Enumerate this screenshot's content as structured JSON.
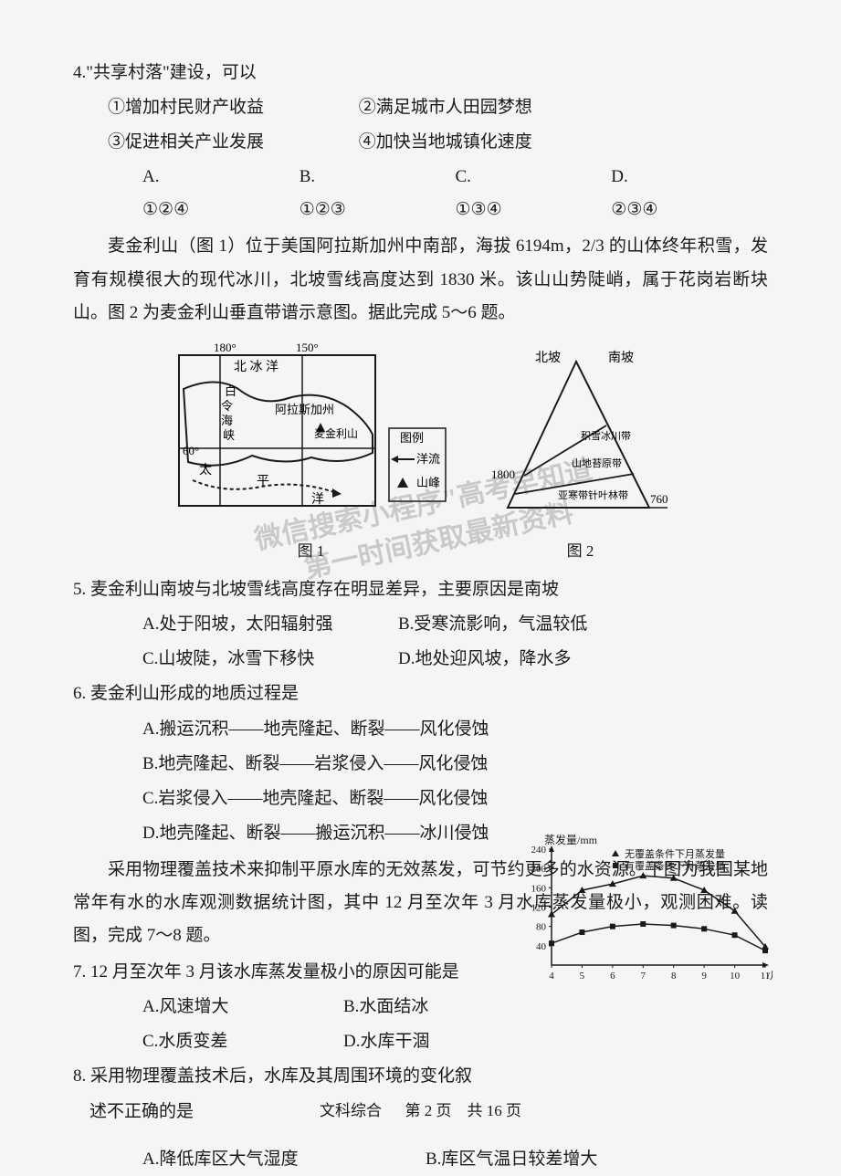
{
  "q4": {
    "stem": "4.\"共享村落\"建设，可以",
    "sub1": "①增加村民财产收益",
    "sub2": "②满足城市人田园梦想",
    "sub3": "③促进相关产业发展",
    "sub4": "④加快当地城镇化速度",
    "optA": "A. ①②④",
    "optB": "B. ①②③",
    "optC": "C. ①③④",
    "optD": "D. ②③④"
  },
  "passage1": "麦金利山（图 1）位于美国阿拉斯加州中南部，海拔 6194m，2/3 的山体终年积雪，发育有规模很大的现代冰川，北坡雪线高度达到 1830 米。该山山势陡峭，属于花岗岩断块山。图 2 为麦金利山垂直带谱示意图。据此完成 5～6 题。",
  "fig1": {
    "caption": "图 1",
    "labels": {
      "lon180": "180°",
      "lon150": "150°",
      "arctic": "北 冰 洋",
      "baiLing": "白令海峡",
      "alaska": "阿拉斯加州",
      "mountain": "麦金利山",
      "lat60": "60°",
      "pacific": "太 平 洋",
      "legend": "图例",
      "current": "洋流",
      "peak": "山峰"
    },
    "colors": {
      "border": "#1a1a1a",
      "bg": "#ffffff"
    }
  },
  "fig2": {
    "caption": "图 2",
    "labels": {
      "north": "北坡",
      "south": "南坡",
      "snowline": "1800",
      "base": "760",
      "zone1": "积雪冰川带",
      "zone2": "山地苔原带",
      "zone3": "亚寒带针叶林带"
    },
    "colors": {
      "border": "#1a1a1a",
      "bg": "#ffffff"
    }
  },
  "q5": {
    "stem": "5. 麦金利山南坡与北坡雪线高度存在明显差异，主要原因是南坡",
    "optA": "A.处于阳坡，太阳辐射强",
    "optB": "B.受寒流影响，气温较低",
    "optC": "C.山坡陡，冰雪下移快",
    "optD": "D.地处迎风坡，降水多"
  },
  "q6": {
    "stem": "6. 麦金利山形成的地质过程是",
    "optA": "A.搬运沉积——地壳隆起、断裂——风化侵蚀",
    "optB": "B.地壳隆起、断裂——岩浆侵入——风化侵蚀",
    "optC": "C.岩浆侵入——地壳隆起、断裂——风化侵蚀",
    "optD": "D.地壳隆起、断裂——搬运沉积——冰川侵蚀"
  },
  "passage2": "采用物理覆盖技术来抑制平原水库的无效蒸发，可节约更多的水资源。下图为我国某地常年有水的水库观测数据统计图，其中 12 月至次年 3 月水库蒸发量极小，观测困难。读图，完成 7～8 题。",
  "q7": {
    "stem": "7.  12 月至次年 3 月该水库蒸发量极小的原因可能是",
    "optA": "A.风速增大",
    "optB": "B.水面结冰",
    "optC": "C.水质变差",
    "optD": "D.水库干涸"
  },
  "q8": {
    "stem": "8.   采用物理覆盖技术后，水库及其周围环境的变化叙",
    "stem2": "述不正确的是",
    "optA": "A.降低库区大气湿度",
    "optB": "B.库区气温日较差增大"
  },
  "chart": {
    "title": "蒸发量/mm",
    "ylim": [
      0,
      240
    ],
    "yticks": [
      40,
      80,
      120,
      160,
      200,
      240
    ],
    "xlim": [
      4,
      11
    ],
    "xticks": [
      4,
      5,
      6,
      7,
      8,
      9,
      10,
      11
    ],
    "xlabel": "/月",
    "series1": {
      "label": "无覆盖条件下月蒸发量",
      "marker": "triangle",
      "color": "#1a1a1a",
      "x": [
        4,
        5,
        6,
        7,
        8,
        9,
        10,
        11
      ],
      "y": [
        105,
        155,
        168,
        185,
        180,
        155,
        112,
        38
      ]
    },
    "series2": {
      "label": "有覆盖条件下月蒸发量",
      "marker": "square",
      "color": "#1a1a1a",
      "x": [
        4,
        5,
        6,
        7,
        8,
        9,
        10,
        11
      ],
      "y": [
        45,
        68,
        80,
        85,
        82,
        75,
        62,
        30
      ]
    },
    "colors": {
      "axis": "#1a1a1a",
      "bg": "#f5f5f3"
    },
    "legend_fontsize": 11
  },
  "watermark": {
    "line1": "微信搜索小程序\"高考早知道\"",
    "line2": "第一时间获取最新资料"
  },
  "footer": {
    "subject": "文科综合",
    "page": "第 2 页",
    "total": "共 16 页"
  }
}
